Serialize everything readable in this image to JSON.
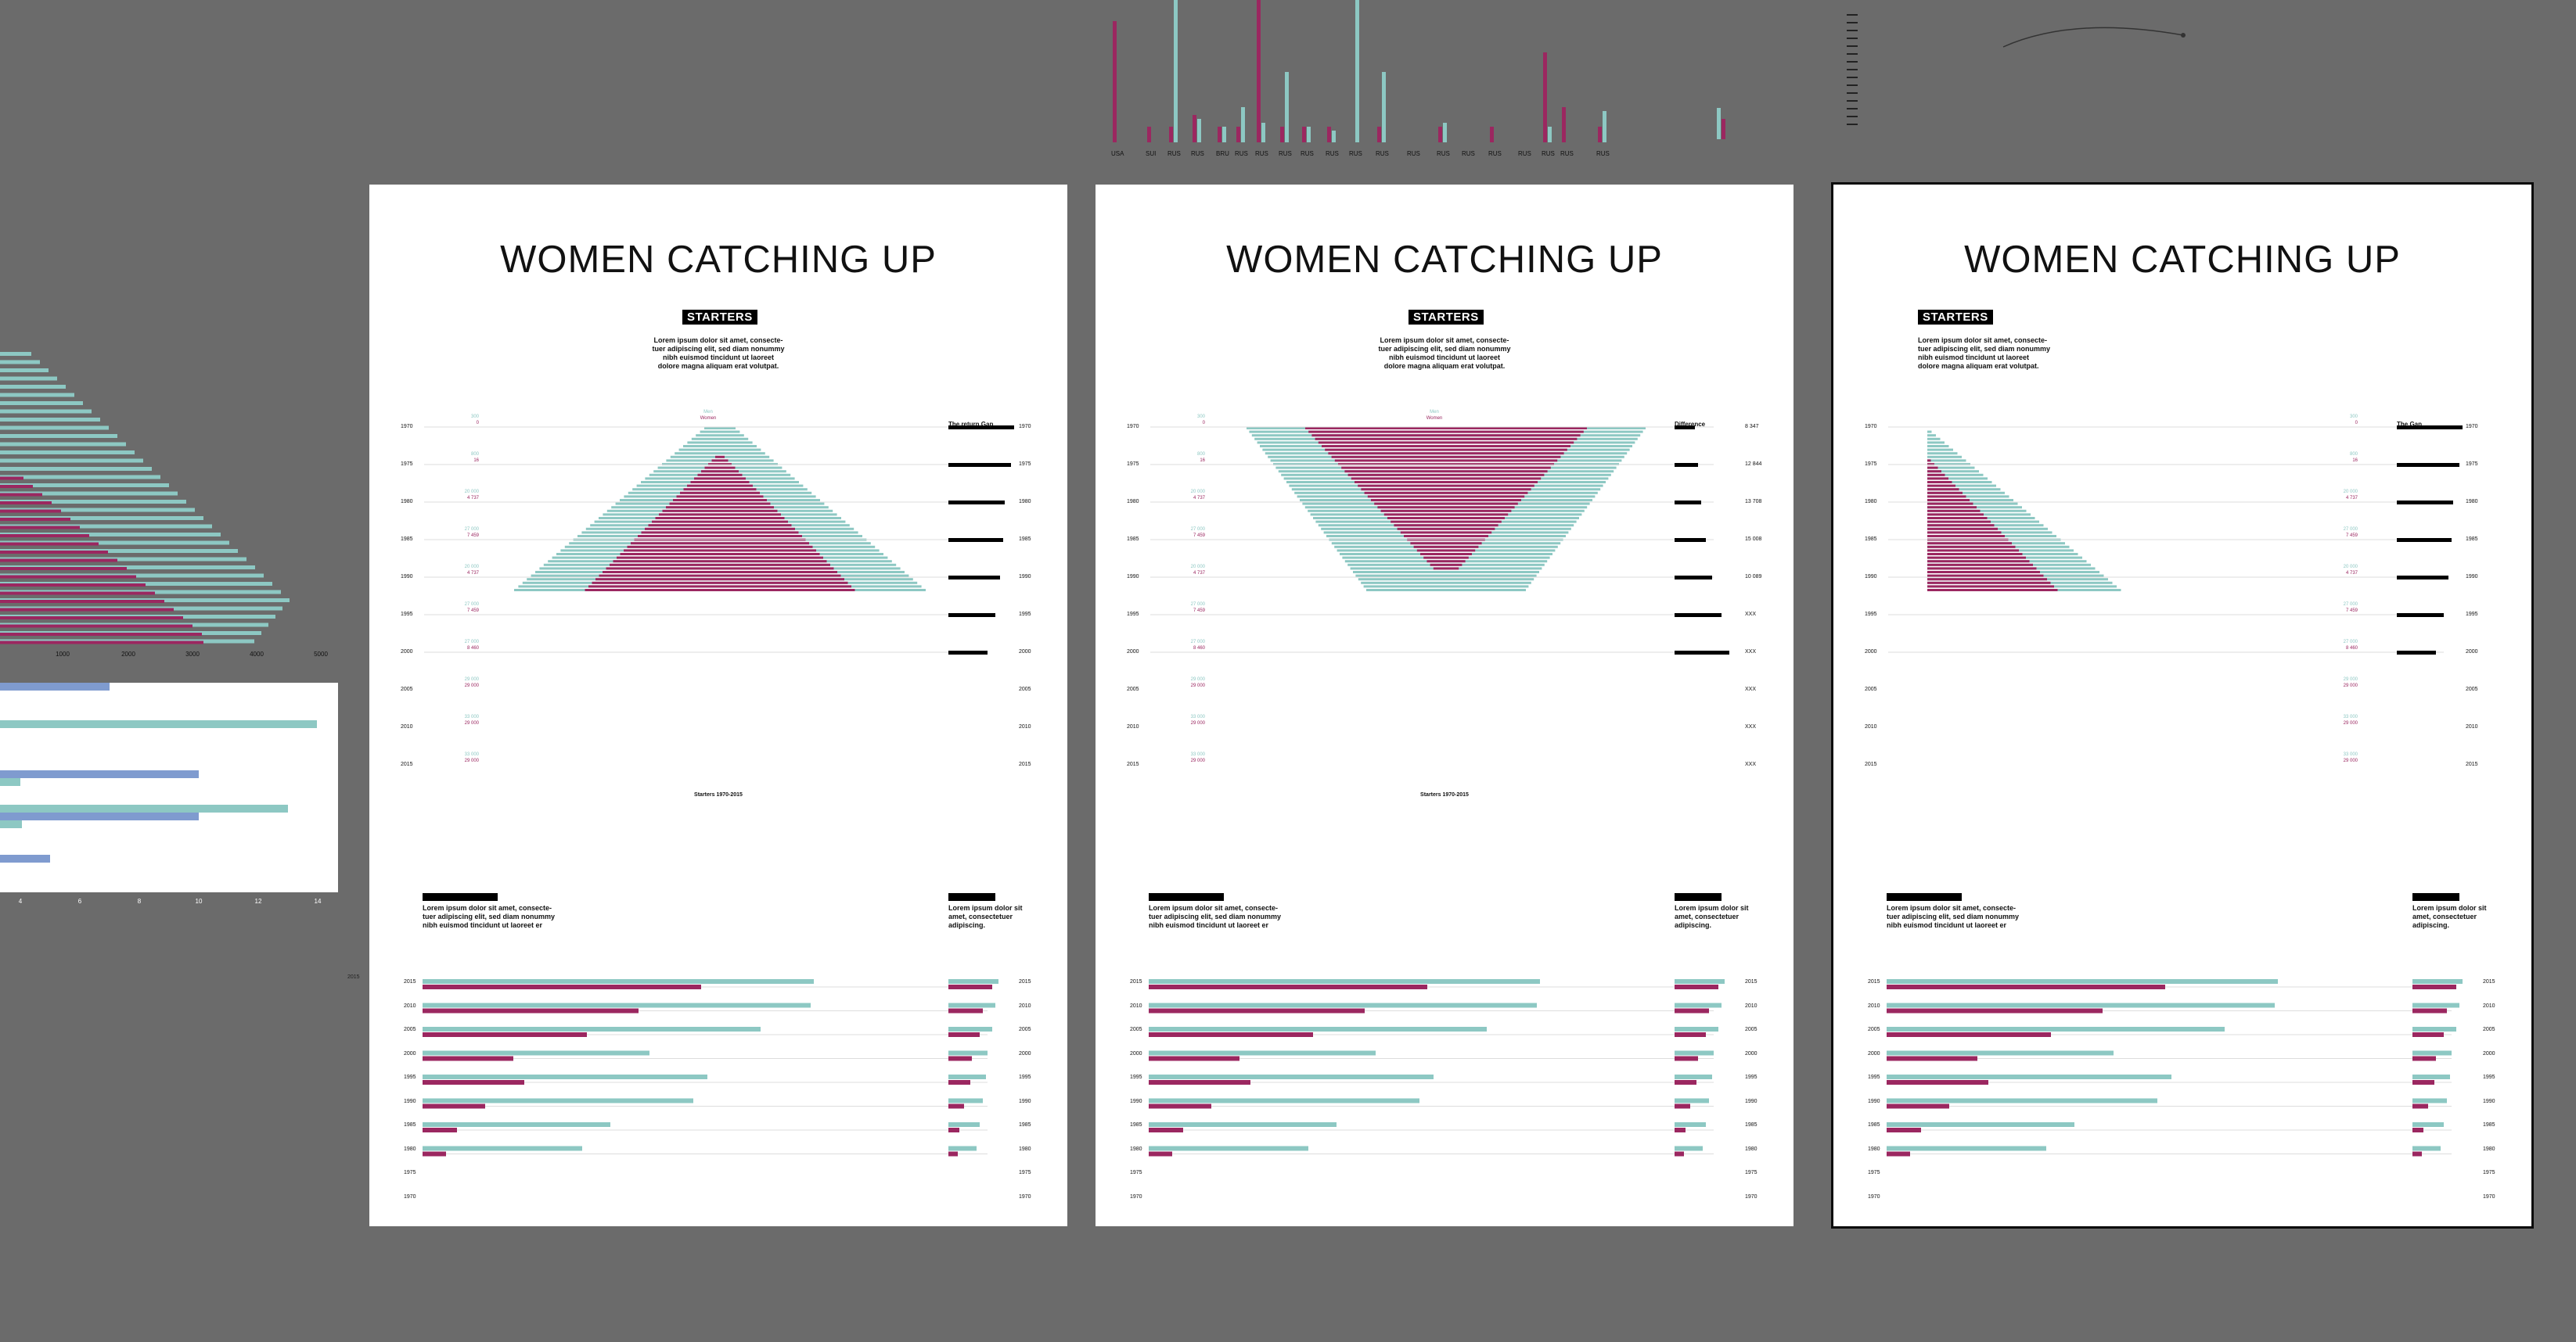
{
  "colors": {
    "canvas": "#6b6b6b",
    "teal": "#8dc8c3",
    "magenta": "#9b2760",
    "artboard": "#ffffff",
    "black": "#000000",
    "blue": "#7f9bcf"
  },
  "boards": [
    {
      "title": "WOMEN CATCHING UP",
      "tag": "STARTERS",
      "lorem": "Lorem ipsum dolor sit amet, consecte-\ntuer adipiscing elit, sed diam nonummy\nnibh euismod tincidunt ut laoreet\ndolore magna aliquam erat volutpat.",
      "gap_label": "The return Gap",
      "men_label": "Men",
      "women_label": "Women",
      "footer": "Starters 1970-2015"
    },
    {
      "title": "WOMEN CATCHING UP",
      "tag": "STARTERS",
      "lorem": "Lorem ipsum dolor sit amet, consecte-\ntuer adipiscing elit, sed diam nonummy\nnibh euismod tincidunt ut laoreet\ndolore magna aliquam erat volutpat.",
      "gap_label": "Difference",
      "men_label": "Men",
      "women_label": "Women",
      "footer": "Starters 1970-2015"
    },
    {
      "title": "WOMEN CATCHING UP",
      "tag": "STARTERS",
      "lorem": "Lorem ipsum dolor sit amet, consecte-\ntuer adipiscing elit, sed diam nonummy\nnibh euismod tincidunt ut laoreet\ndolore magna aliquam erat volutpat.",
      "gap_label": "The Gap",
      "men_label": "Men",
      "women_label": "Women",
      "footer": ""
    }
  ],
  "years": [
    "1970",
    "1975",
    "1980",
    "1985",
    "1990",
    "1995",
    "2000",
    "2005",
    "2010",
    "2015"
  ],
  "years_desc": [
    "2015",
    "2010",
    "2005",
    "2000",
    "1995",
    "1990",
    "1985",
    "1980",
    "1975",
    "1970"
  ],
  "men_values": [
    "300",
    "800",
    "20 000",
    "27 000",
    "20 000",
    "27 000",
    "27 000",
    "29 000",
    "33 000",
    "33 000"
  ],
  "women_values": [
    "0",
    "16",
    "4 737",
    "7 459",
    "4 737",
    "7 459",
    "8 460",
    "29 000",
    "29 000",
    "29 000"
  ],
  "difference_values": [
    "8 347",
    "12 844",
    "13 708",
    "15 008",
    "10 089",
    "XXX",
    "XXX",
    "XXX",
    "XXX",
    "XXX"
  ],
  "bottom_lorem": "Lorem ipsum dolor sit amet, consecte-\ntuer adipiscing elit, sed diam nonummy\nnibh euismod tincidunt ut laoreet er",
  "bottom_side_lorem": "Lorem ipsum dolor sit\namet, consectetuer\nadipiscing.",
  "top_country_labels": [
    "USA",
    "SUI",
    "RUS",
    "RUS",
    "BRU",
    "RUS",
    "RUS",
    "RUS",
    "RUS",
    "RUS",
    "RUS",
    "RUS",
    "RUS",
    "RUS",
    "RUS",
    "RUS",
    "RUS",
    "RUS",
    "RUS",
    "RUS"
  ],
  "left_axis": [
    "1000",
    "2000",
    "3000",
    "4000",
    "5000"
  ],
  "left_panel_ticks": [
    "4",
    "6",
    "8",
    "10",
    "12",
    "14"
  ],
  "left_panel_extra": "2015"
}
